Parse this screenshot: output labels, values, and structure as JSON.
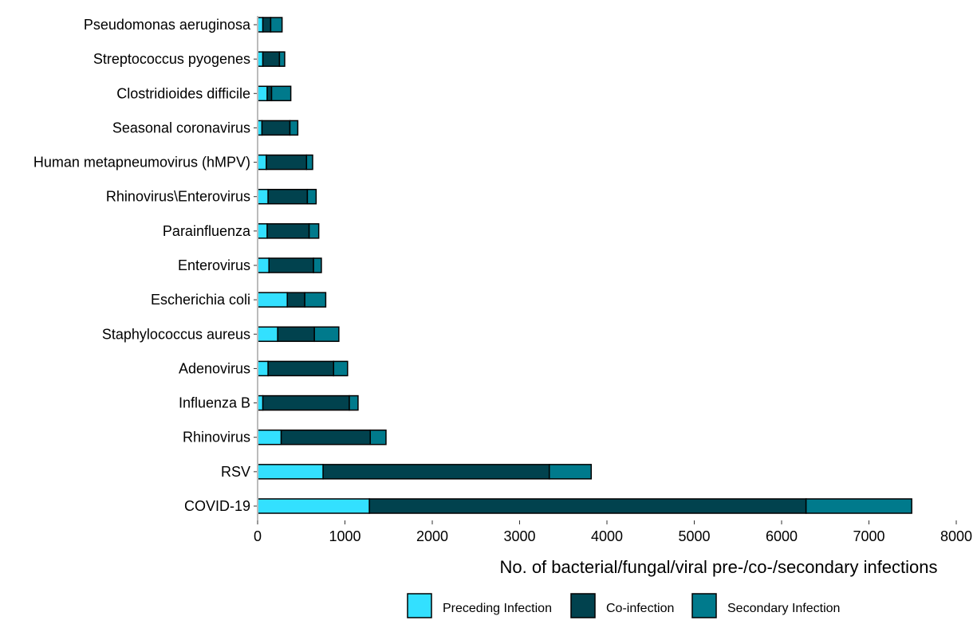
{
  "chart_data": {
    "type": "bar",
    "orientation": "horizontal",
    "stacked": true,
    "title": "",
    "xlabel": "No. of bacterial/fungal/viral pre-/co-/secondary infections",
    "ylabel": "",
    "xlim": [
      0,
      8000
    ],
    "xticks": [
      0,
      1000,
      2000,
      3000,
      4000,
      5000,
      6000,
      7000,
      8000
    ],
    "grid": false,
    "legend_position": "bottom",
    "categories": [
      "COVID-19",
      "RSV",
      "Rhinovirus",
      "Influenza B",
      "Adenovirus",
      "Staphylococcus aureus",
      "Escherichia coli",
      "Enterovirus",
      "Parainfluenza",
      "Rhinovirus\\Enterovirus",
      "Human metapneumovirus (hMPV)",
      "Seasonal coronavirus",
      "Clostridioides difficile",
      "Streptococcus pyogenes",
      "Pseudomonas aeruginosa"
    ],
    "series": [
      {
        "name": "Preceding Infection",
        "color": "#33e0ff",
        "values": [
          1280,
          750,
          270,
          60,
          120,
          230,
          340,
          130,
          110,
          120,
          100,
          50,
          110,
          60,
          60
        ]
      },
      {
        "name": "Co-infection",
        "color": "#01424e",
        "values": [
          5000,
          2590,
          1020,
          990,
          750,
          420,
          200,
          510,
          480,
          450,
          460,
          320,
          50,
          190,
          90
        ]
      },
      {
        "name": "Secondary Infection",
        "color": "#007a8c",
        "values": [
          1210,
          480,
          180,
          100,
          160,
          280,
          240,
          90,
          110,
          100,
          70,
          90,
          220,
          60,
          130
        ]
      }
    ]
  }
}
